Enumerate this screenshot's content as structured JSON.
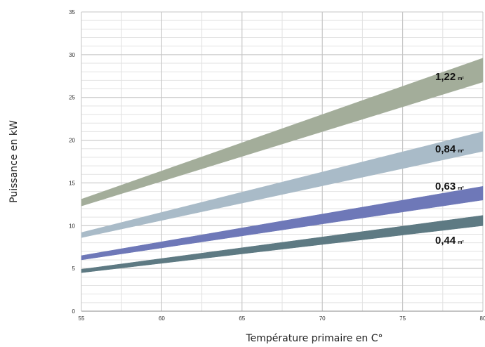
{
  "chart_data": {
    "type": "area",
    "xlabel": "Température primaire en C°",
    "ylabel": "Puissance en kW",
    "xlim": [
      55,
      80
    ],
    "ylim": [
      0,
      35
    ],
    "x_ticks": [
      "55",
      "60",
      "65",
      "70",
      "75",
      "80"
    ],
    "y_ticks": [
      "0",
      "5",
      "10",
      "15",
      "20",
      "25",
      "30",
      "35"
    ],
    "grid": true,
    "series": [
      {
        "name": "1,22",
        "unit": "m²",
        "color": "#a3ad9a",
        "x": [
          55,
          80
        ],
        "low": [
          12.3,
          26.8
        ],
        "high": [
          13.1,
          29.6
        ]
      },
      {
        "name": "0,84",
        "unit": "m²",
        "color": "#a9bbc8",
        "x": [
          55,
          80
        ],
        "low": [
          8.6,
          18.7
        ],
        "high": [
          9.2,
          21.0
        ]
      },
      {
        "name": "0,63",
        "unit": "m²",
        "color": "#6e78b8",
        "x": [
          55,
          80
        ],
        "low": [
          6.0,
          13.0
        ],
        "high": [
          6.5,
          14.6
        ]
      },
      {
        "name": "0,44",
        "unit": "m²",
        "color": "#5e7a83",
        "x": [
          55,
          80
        ],
        "low": [
          4.5,
          10.0
        ],
        "high": [
          4.9,
          11.2
        ]
      }
    ]
  }
}
